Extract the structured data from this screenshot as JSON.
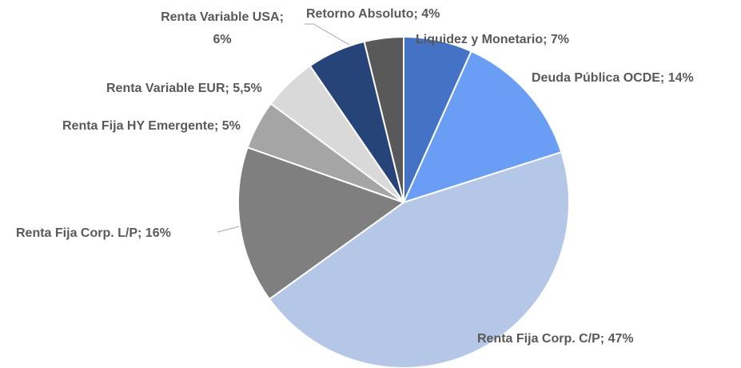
{
  "chart_data": {
    "type": "pie",
    "values": [
      7,
      14,
      47,
      16,
      5,
      5.5,
      6,
      4
    ],
    "value_labels": [
      "Liquidez y Monetario; 7%",
      "Deuda Pública OCDE; 14%",
      "Renta Fija Corp. C/P; 47%",
      "Renta Fija Corp. L/P; 16%",
      "Renta Fija HY Emergente; 5%",
      "Renta Variable EUR; 5,5%",
      "Renta Variable USA; 6%",
      "Retorno Absoluto; 4%"
    ],
    "colors": [
      "#4472c4",
      "#6a9ef5",
      "#b4c7e7",
      "#7f7f7f",
      "#a5a5a5",
      "#d9d9d9",
      "#264478",
      "#595959"
    ]
  }
}
